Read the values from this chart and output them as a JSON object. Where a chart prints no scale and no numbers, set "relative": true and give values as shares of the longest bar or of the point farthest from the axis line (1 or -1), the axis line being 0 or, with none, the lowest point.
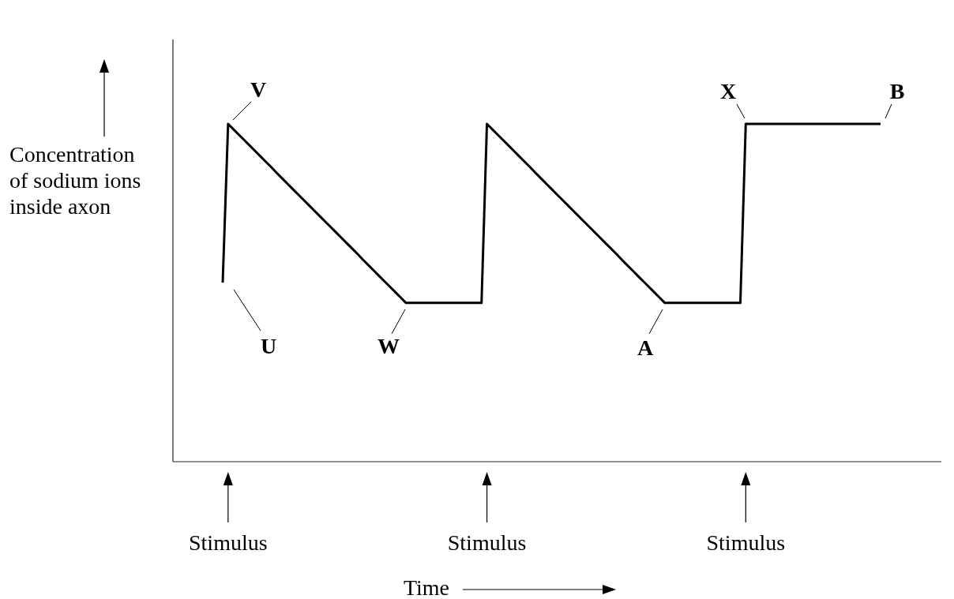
{
  "chart_data": {
    "type": "line",
    "relative": true,
    "xlabel": "Time",
    "ylabel": "Concentration of sodium ions inside axon",
    "categories": [
      null,
      "Stimulus",
      null,
      null,
      null,
      null,
      null,
      null,
      null,
      null,
      null,
      null,
      null,
      null,
      null,
      null,
      null,
      null,
      null,
      null,
      null,
      null,
      null,
      null,
      null,
      null,
      null,
      null,
      null,
      null,
      null,
      null,
      null,
      null,
      null,
      null,
      null,
      null,
      null,
      null,
      null,
      null,
      null,
      null,
      null,
      null,
      null,
      null,
      null,
      "Stimulus",
      null,
      null,
      null,
      null,
      null,
      null,
      null,
      null,
      null,
      null,
      null,
      null,
      null,
      null,
      null,
      null,
      null,
      null,
      null,
      null,
      null,
      null,
      null,
      null,
      null,
      null,
      null,
      null,
      null,
      null,
      null,
      null,
      null,
      null,
      null,
      null,
      null,
      null,
      null,
      null,
      null,
      null,
      null,
      null,
      null,
      null,
      null,
      "Stimulus",
      null,
      null,
      null,
      null,
      null,
      null,
      null,
      null,
      null,
      null,
      null,
      null,
      null,
      null,
      null,
      null,
      null,
      null,
      null,
      null,
      null,
      null,
      null,
      null,
      null
    ],
    "series": [
      {
        "color": "#000000",
        "values": [
          0.53,
          1,
          0.984,
          0.968,
          0.952,
          0.936,
          0.92,
          0.904,
          0.888,
          0.872,
          0.855,
          0.839,
          0.823,
          0.807,
          0.791,
          0.775,
          0.759,
          0.743,
          0.727,
          0.711,
          0.695,
          0.679,
          0.663,
          0.647,
          0.631,
          0.615,
          0.598,
          0.582,
          0.566,
          0.55,
          0.534,
          0.518,
          0.502,
          0.486,
          0.47,
          0.47,
          0.47,
          0.47,
          0.47,
          0.47,
          0.47,
          0.47,
          0.47,
          0.47,
          0.47,
          0.47,
          0.47,
          0.47,
          0.47,
          1,
          0.984,
          0.968,
          0.952,
          0.936,
          0.92,
          0.904,
          0.888,
          0.872,
          0.855,
          0.839,
          0.823,
          0.807,
          0.791,
          0.775,
          0.759,
          0.743,
          0.727,
          0.711,
          0.695,
          0.679,
          0.663,
          0.647,
          0.631,
          0.615,
          0.598,
          0.582,
          0.566,
          0.55,
          0.534,
          0.518,
          0.502,
          0.486,
          0.47,
          0.47,
          0.47,
          0.47,
          0.47,
          0.47,
          0.47,
          0.47,
          0.47,
          0.47,
          0.47,
          0.47,
          0.47,
          0.47,
          0.47,
          1,
          1,
          1,
          1,
          1,
          1,
          1,
          1,
          1,
          1,
          1,
          1,
          1,
          1,
          1,
          1,
          1,
          1,
          1,
          1,
          1,
          1,
          1,
          1,
          1,
          1
        ]
      }
    ],
    "annotations": [
      "U",
      "V",
      "W",
      "A",
      "X",
      "B"
    ]
  }
}
